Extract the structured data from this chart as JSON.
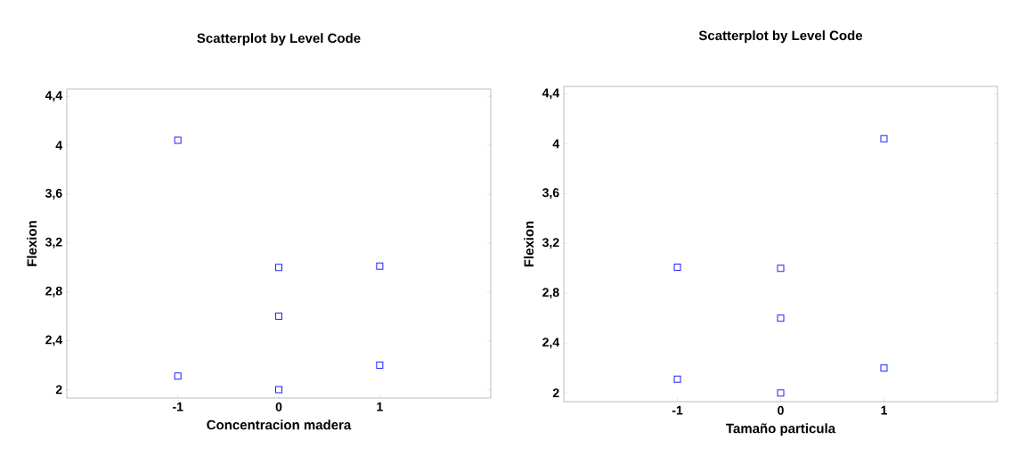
{
  "chart_data": [
    {
      "type": "scatter",
      "title": "Scatterplot by Level Code",
      "xlabel": "Concentracion madera",
      "ylabel": "Flexion",
      "x": [
        -1,
        -1,
        0,
        0,
        0,
        1,
        1
      ],
      "values": [
        4.04,
        2.11,
        3.0,
        2.6,
        2.0,
        3.01,
        2.2
      ],
      "color": "#2020ff",
      "marker": "square",
      "xlim": [
        -2.1,
        2.1
      ],
      "ylim": [
        1.93,
        4.46
      ],
      "xticks": [
        -1,
        0,
        1
      ],
      "yticks": [
        2,
        {
          "value": 2.4,
          "label": "2,4"
        },
        {
          "value": 2.8,
          "label": "2,8"
        },
        {
          "value": 3.2,
          "label": "3,2"
        },
        {
          "value": 3.6,
          "label": "3,6"
        },
        4,
        {
          "value": 4.4,
          "label": "4,4"
        }
      ]
    },
    {
      "type": "scatter",
      "title": "Scatterplot by Level Code",
      "xlabel": "Tamaño particula",
      "ylabel": "Flexion",
      "x": [
        -1,
        -1,
        0,
        0,
        0,
        1,
        1
      ],
      "values": [
        3.01,
        2.11,
        3.0,
        2.6,
        2.0,
        4.04,
        2.2
      ],
      "color": "#2020ff",
      "marker": "square",
      "xlim": [
        -2.1,
        2.1
      ],
      "ylim": [
        1.93,
        4.46
      ],
      "xticks": [
        -1,
        0,
        1
      ],
      "yticks": [
        2,
        {
          "value": 2.4,
          "label": "2,4"
        },
        {
          "value": 2.8,
          "label": "2,8"
        },
        {
          "value": 3.2,
          "label": "3,2"
        },
        {
          "value": 3.6,
          "label": "3,6"
        },
        4,
        {
          "value": 4.4,
          "label": "4,4"
        }
      ]
    }
  ]
}
